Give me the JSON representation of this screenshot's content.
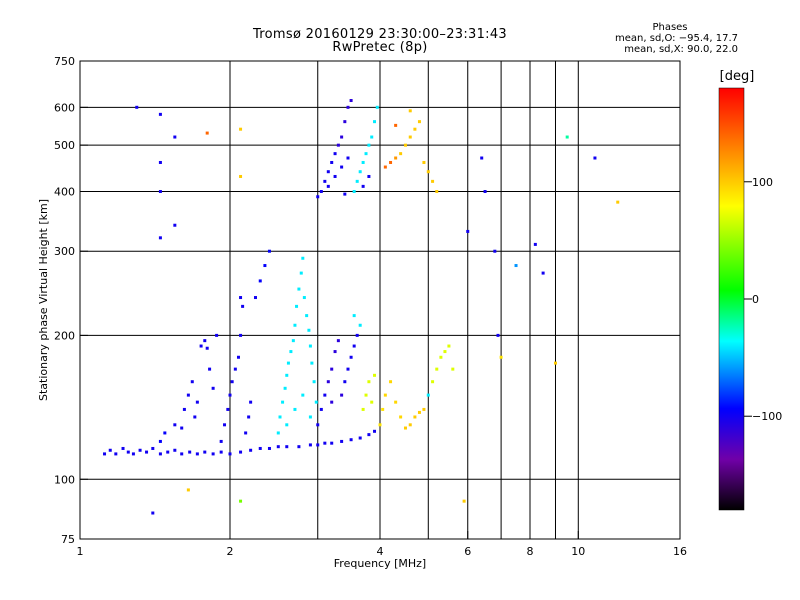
{
  "header": {
    "title_line1": "Tromsø 20160129 23:30:00–23:31:43",
    "title_line2": "RwPretec (8p)"
  },
  "stats": {
    "heading": "Phases",
    "line_o": "mean, sd,O: −95.4, 17.7",
    "line_x": "mean, sd,X:  90.0, 22.0"
  },
  "colorbar": {
    "unit_label": "[deg]",
    "range": [
      -180,
      180
    ],
    "ticks": [
      {
        "value": 100,
        "label": "100"
      },
      {
        "value": 0,
        "label": "0"
      },
      {
        "value": -100,
        "label": "−100"
      }
    ],
    "stops": [
      "#000000",
      "#7000a8",
      "#0000ff",
      "#00ffff",
      "#00ff00",
      "#ffff00",
      "#ff8000",
      "#ff0000"
    ]
  },
  "chart_data": {
    "type": "scatter",
    "title": "Tromsø 20160129 23:30:00–23:31:43",
    "subtitle": "RwPretec (8p)",
    "xlabel": "Frequency [MHz]",
    "ylabel": "Stationary phase Virtual Height [km]",
    "x_scale": "log",
    "y_scale": "log",
    "xlim": [
      1,
      16
    ],
    "ylim": [
      75,
      750
    ],
    "grid": true,
    "x_ticks": [
      {
        "value": 1,
        "label": "1"
      },
      {
        "value": 2,
        "label": "2"
      },
      {
        "value": 4,
        "label": "4"
      },
      {
        "value": 6,
        "label": "6"
      },
      {
        "value": 8,
        "label": "8"
      },
      {
        "value": 10,
        "label": "10"
      },
      {
        "value": 16,
        "label": "16"
      }
    ],
    "x_grid": [
      2,
      3,
      4,
      5,
      6,
      7,
      8,
      9,
      10
    ],
    "y_ticks": [
      {
        "value": 75,
        "label": "75"
      },
      {
        "value": 100,
        "label": "100"
      },
      {
        "value": 200,
        "label": "200"
      },
      {
        "value": 300,
        "label": "300"
      },
      {
        "value": 400,
        "label": "400"
      },
      {
        "value": 500,
        "label": "500"
      },
      {
        "value": 600,
        "label": "600"
      },
      {
        "value": 750,
        "label": "750"
      }
    ],
    "y_grid": [
      100,
      200,
      300,
      400,
      500,
      600
    ],
    "color_scale": "phase [deg]",
    "series": [
      {
        "name": "",
        "points": [
          [
            1.12,
            113,
            -100
          ],
          [
            1.15,
            115,
            -100
          ],
          [
            1.18,
            113,
            -100
          ],
          [
            1.22,
            116,
            -100
          ],
          [
            1.25,
            114,
            -100
          ],
          [
            1.28,
            113,
            -100
          ],
          [
            1.32,
            115,
            -100
          ],
          [
            1.36,
            114,
            -100
          ],
          [
            1.4,
            116,
            -100
          ],
          [
            1.45,
            113,
            -100
          ],
          [
            1.5,
            114,
            -100
          ],
          [
            1.55,
            115,
            -100
          ],
          [
            1.6,
            113,
            -100
          ],
          [
            1.66,
            114,
            -100
          ],
          [
            1.72,
            113,
            -100
          ],
          [
            1.78,
            114,
            -100
          ],
          [
            1.85,
            113,
            -100
          ],
          [
            1.92,
            114,
            -100
          ],
          [
            2.0,
            113,
            -100
          ],
          [
            2.1,
            114,
            -100
          ],
          [
            2.2,
            115,
            -100
          ],
          [
            2.3,
            116,
            -100
          ],
          [
            2.4,
            116,
            -100
          ],
          [
            2.5,
            117,
            -100
          ],
          [
            2.6,
            117,
            -100
          ],
          [
            2.75,
            117,
            -100
          ],
          [
            2.9,
            118,
            -100
          ],
          [
            3.0,
            118,
            -100
          ],
          [
            3.1,
            119,
            -100
          ],
          [
            3.2,
            119,
            -100
          ],
          [
            3.35,
            120,
            -100
          ],
          [
            3.5,
            121,
            -100
          ],
          [
            3.65,
            122,
            -100
          ],
          [
            3.8,
            124,
            -100
          ],
          [
            3.9,
            126,
            -100
          ],
          [
            1.45,
            120,
            -95
          ],
          [
            1.48,
            125,
            -95
          ],
          [
            1.55,
            130,
            -100
          ],
          [
            1.6,
            128,
            -100
          ],
          [
            1.62,
            140,
            -100
          ],
          [
            1.65,
            150,
            -100
          ],
          [
            1.68,
            160,
            -100
          ],
          [
            1.7,
            135,
            -100
          ],
          [
            1.72,
            145,
            -100
          ],
          [
            1.75,
            190,
            -100
          ],
          [
            1.78,
            195,
            -100
          ],
          [
            1.8,
            188,
            -100
          ],
          [
            1.82,
            170,
            -100
          ],
          [
            1.85,
            155,
            -100
          ],
          [
            1.88,
            200,
            -100
          ],
          [
            1.92,
            120,
            -100
          ],
          [
            1.95,
            130,
            -100
          ],
          [
            1.98,
            140,
            -100
          ],
          [
            2.0,
            150,
            -100
          ],
          [
            2.02,
            160,
            -100
          ],
          [
            2.05,
            170,
            -100
          ],
          [
            2.08,
            180,
            -100
          ],
          [
            2.1,
            200,
            -100
          ],
          [
            2.12,
            230,
            -100
          ],
          [
            2.15,
            125,
            -100
          ],
          [
            2.18,
            135,
            -100
          ],
          [
            2.2,
            145,
            -100
          ],
          [
            2.25,
            240,
            -100
          ],
          [
            2.3,
            260,
            -95
          ],
          [
            2.35,
            280,
            -95
          ],
          [
            2.4,
            300,
            -95
          ],
          [
            2.5,
            125,
            -40
          ],
          [
            2.52,
            135,
            -40
          ],
          [
            2.55,
            145,
            -40
          ],
          [
            2.58,
            155,
            -40
          ],
          [
            2.6,
            165,
            -40
          ],
          [
            2.62,
            175,
            -40
          ],
          [
            2.65,
            185,
            -40
          ],
          [
            2.68,
            195,
            -40
          ],
          [
            2.7,
            210,
            -40
          ],
          [
            2.72,
            230,
            -40
          ],
          [
            2.75,
            250,
            -40
          ],
          [
            2.78,
            270,
            -40
          ],
          [
            2.8,
            290,
            -40
          ],
          [
            2.82,
            240,
            -40
          ],
          [
            2.85,
            220,
            -40
          ],
          [
            2.88,
            205,
            -40
          ],
          [
            2.9,
            190,
            -40
          ],
          [
            2.92,
            175,
            -40
          ],
          [
            2.95,
            160,
            -40
          ],
          [
            2.98,
            145,
            -40
          ],
          [
            2.6,
            130,
            -40
          ],
          [
            2.7,
            140,
            -40
          ],
          [
            2.8,
            150,
            -40
          ],
          [
            2.9,
            135,
            -40
          ],
          [
            3.0,
            130,
            -100
          ],
          [
            3.05,
            140,
            -100
          ],
          [
            3.1,
            150,
            -100
          ],
          [
            3.15,
            160,
            -110
          ],
          [
            3.2,
            170,
            -110
          ],
          [
            3.25,
            185,
            -110
          ],
          [
            3.3,
            195,
            -110
          ],
          [
            3.2,
            145,
            -110
          ],
          [
            3.35,
            150,
            -110
          ],
          [
            3.4,
            160,
            -100
          ],
          [
            3.45,
            170,
            -100
          ],
          [
            3.5,
            180,
            -100
          ],
          [
            3.55,
            190,
            -100
          ],
          [
            3.6,
            200,
            -100
          ],
          [
            3.65,
            210,
            -40
          ],
          [
            3.55,
            220,
            -40
          ],
          [
            3.7,
            140,
            70
          ],
          [
            3.75,
            150,
            70
          ],
          [
            3.8,
            160,
            70
          ],
          [
            3.85,
            145,
            70
          ],
          [
            3.9,
            165,
            70
          ],
          [
            4.0,
            130,
            90
          ],
          [
            4.05,
            140,
            90
          ],
          [
            4.1,
            150,
            95
          ],
          [
            4.2,
            160,
            95
          ],
          [
            4.3,
            145,
            95
          ],
          [
            4.4,
            135,
            95
          ],
          [
            4.5,
            128,
            100
          ],
          [
            4.6,
            130,
            100
          ],
          [
            4.7,
            135,
            100
          ],
          [
            4.8,
            138,
            100
          ],
          [
            4.9,
            140,
            100
          ],
          [
            5.0,
            150,
            -40
          ],
          [
            5.1,
            160,
            70
          ],
          [
            5.2,
            170,
            70
          ],
          [
            5.3,
            180,
            70
          ],
          [
            5.4,
            185,
            70
          ],
          [
            5.5,
            190,
            70
          ],
          [
            5.6,
            170,
            70
          ],
          [
            3.0,
            390,
            -100
          ],
          [
            3.05,
            400,
            -100
          ],
          [
            3.1,
            420,
            -100
          ],
          [
            3.15,
            440,
            -100
          ],
          [
            3.2,
            460,
            -100
          ],
          [
            3.25,
            480,
            -100
          ],
          [
            3.3,
            500,
            -110
          ],
          [
            3.35,
            520,
            -110
          ],
          [
            3.4,
            560,
            -110
          ],
          [
            3.45,
            600,
            -110
          ],
          [
            3.5,
            620,
            -110
          ],
          [
            3.15,
            410,
            -100
          ],
          [
            3.25,
            430,
            -100
          ],
          [
            3.35,
            450,
            -100
          ],
          [
            3.45,
            470,
            -100
          ],
          [
            3.4,
            395,
            -100
          ],
          [
            3.55,
            400,
            -40
          ],
          [
            3.6,
            420,
            -40
          ],
          [
            3.65,
            440,
            -40
          ],
          [
            3.7,
            460,
            -40
          ],
          [
            3.75,
            480,
            -40
          ],
          [
            3.8,
            500,
            -40
          ],
          [
            3.85,
            520,
            -40
          ],
          [
            3.9,
            560,
            -40
          ],
          [
            3.95,
            600,
            -40
          ],
          [
            3.7,
            410,
            -100
          ],
          [
            3.8,
            430,
            -100
          ],
          [
            4.1,
            450,
            140
          ],
          [
            4.2,
            460,
            140
          ],
          [
            4.3,
            470,
            120
          ],
          [
            4.4,
            480,
            100
          ],
          [
            4.5,
            500,
            100
          ],
          [
            4.6,
            520,
            100
          ],
          [
            4.7,
            540,
            100
          ],
          [
            4.8,
            560,
            100
          ],
          [
            4.9,
            460,
            100
          ],
          [
            5.0,
            440,
            100
          ],
          [
            5.1,
            420,
            100
          ],
          [
            5.2,
            400,
            100
          ],
          [
            4.3,
            550,
            140
          ],
          [
            4.6,
            590,
            100
          ],
          [
            1.3,
            600,
            -100
          ],
          [
            1.45,
            580,
            -100
          ],
          [
            1.45,
            460,
            -100
          ],
          [
            1.45,
            400,
            -100
          ],
          [
            1.45,
            320,
            -100
          ],
          [
            1.55,
            520,
            -100
          ],
          [
            1.55,
            340,
            -100
          ],
          [
            1.8,
            530,
            140
          ],
          [
            2.1,
            540,
            100
          ],
          [
            2.1,
            430,
            100
          ],
          [
            2.1,
            240,
            -100
          ],
          [
            6.0,
            330,
            -100
          ],
          [
            6.4,
            470,
            -100
          ],
          [
            6.5,
            400,
            -100
          ],
          [
            6.8,
            300,
            -100
          ],
          [
            6.9,
            200,
            -100
          ],
          [
            7.0,
            180,
            90
          ],
          [
            7.5,
            280,
            -60
          ],
          [
            8.2,
            310,
            -100
          ],
          [
            8.5,
            270,
            -100
          ],
          [
            9.5,
            520,
            -20
          ],
          [
            10.8,
            470,
            -100
          ],
          [
            12.0,
            380,
            100
          ],
          [
            9.0,
            175,
            100
          ],
          [
            5.9,
            90,
            100
          ],
          [
            2.1,
            90,
            40
          ],
          [
            1.4,
            85,
            -100
          ],
          [
            1.65,
            95,
            100
          ]
        ]
      }
    ]
  }
}
